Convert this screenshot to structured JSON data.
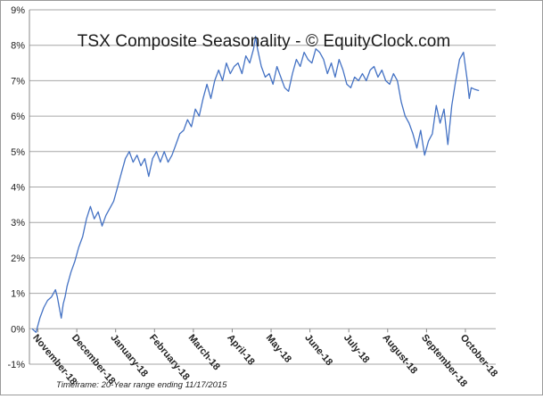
{
  "chart_data": {
    "type": "line",
    "title": "TSX Composite Seasonality - © EquityClock.com",
    "footnote": "Timeframe: 20-Year range ending 11/17/2015",
    "xlabel": "",
    "ylabel": "",
    "ylim": [
      -1,
      9
    ],
    "yticks": [
      "-1%",
      "0%",
      "1%",
      "2%",
      "3%",
      "4%",
      "5%",
      "6%",
      "7%",
      "8%",
      "9%"
    ],
    "xticks": [
      "November-18",
      "December-18",
      "January-18",
      "February-18",
      "March-18",
      "April-18",
      "May-18",
      "June-18",
      "July-18",
      "August-18",
      "September-18",
      "October-18"
    ],
    "grid": "horizontal",
    "legend": "none",
    "line_color": "#4472c4",
    "series": [
      {
        "points": [
          [
            0,
            0.0
          ],
          [
            0.1,
            -0.1
          ],
          [
            0.2,
            0.3
          ],
          [
            0.3,
            0.6
          ],
          [
            0.4,
            0.8
          ],
          [
            0.5,
            0.9
          ],
          [
            0.6,
            1.1
          ],
          [
            0.65,
            0.9
          ],
          [
            0.7,
            0.6
          ],
          [
            0.75,
            0.3
          ],
          [
            0.8,
            0.7
          ],
          [
            0.85,
            0.9
          ],
          [
            0.9,
            1.2
          ],
          [
            1.0,
            1.6
          ],
          [
            1.1,
            1.9
          ],
          [
            1.2,
            2.3
          ],
          [
            1.3,
            2.6
          ],
          [
            1.4,
            3.1
          ],
          [
            1.5,
            3.45
          ],
          [
            1.6,
            3.1
          ],
          [
            1.7,
            3.3
          ],
          [
            1.8,
            2.9
          ],
          [
            1.9,
            3.2
          ],
          [
            2.0,
            3.4
          ],
          [
            2.1,
            3.6
          ],
          [
            2.2,
            4.0
          ],
          [
            2.3,
            4.4
          ],
          [
            2.4,
            4.8
          ],
          [
            2.5,
            5.0
          ],
          [
            2.6,
            4.7
          ],
          [
            2.7,
            4.9
          ],
          [
            2.8,
            4.6
          ],
          [
            2.9,
            4.8
          ],
          [
            3.0,
            4.3
          ],
          [
            3.1,
            4.8
          ],
          [
            3.2,
            5.0
          ],
          [
            3.3,
            4.7
          ],
          [
            3.4,
            5.0
          ],
          [
            3.5,
            4.7
          ],
          [
            3.6,
            4.9
          ],
          [
            3.7,
            5.2
          ],
          [
            3.8,
            5.5
          ],
          [
            3.9,
            5.6
          ],
          [
            4.0,
            5.9
          ],
          [
            4.1,
            5.7
          ],
          [
            4.2,
            6.2
          ],
          [
            4.3,
            6.0
          ],
          [
            4.4,
            6.5
          ],
          [
            4.5,
            6.9
          ],
          [
            4.6,
            6.5
          ],
          [
            4.7,
            7.0
          ],
          [
            4.8,
            7.3
          ],
          [
            4.9,
            7.0
          ],
          [
            5.0,
            7.5
          ],
          [
            5.1,
            7.2
          ],
          [
            5.2,
            7.4
          ],
          [
            5.3,
            7.5
          ],
          [
            5.4,
            7.2
          ],
          [
            5.5,
            7.7
          ],
          [
            5.6,
            7.5
          ],
          [
            5.7,
            7.9
          ],
          [
            5.75,
            8.25
          ],
          [
            5.8,
            7.9
          ],
          [
            5.9,
            7.4
          ],
          [
            6.0,
            7.1
          ],
          [
            6.1,
            7.2
          ],
          [
            6.2,
            6.9
          ],
          [
            6.3,
            7.4
          ],
          [
            6.4,
            7.1
          ],
          [
            6.5,
            6.8
          ],
          [
            6.6,
            6.7
          ],
          [
            6.7,
            7.2
          ],
          [
            6.8,
            7.6
          ],
          [
            6.9,
            7.4
          ],
          [
            7.0,
            7.8
          ],
          [
            7.1,
            7.6
          ],
          [
            7.2,
            7.5
          ],
          [
            7.3,
            7.9
          ],
          [
            7.4,
            7.8
          ],
          [
            7.5,
            7.6
          ],
          [
            7.6,
            7.2
          ],
          [
            7.7,
            7.5
          ],
          [
            7.8,
            7.1
          ],
          [
            7.9,
            7.6
          ],
          [
            8.0,
            7.3
          ],
          [
            8.1,
            6.9
          ],
          [
            8.2,
            6.8
          ],
          [
            8.3,
            7.1
          ],
          [
            8.4,
            7.0
          ],
          [
            8.5,
            7.2
          ],
          [
            8.6,
            7.0
          ],
          [
            8.7,
            7.3
          ],
          [
            8.8,
            7.4
          ],
          [
            8.9,
            7.1
          ],
          [
            9.0,
            7.3
          ],
          [
            9.1,
            7.0
          ],
          [
            9.2,
            6.9
          ],
          [
            9.3,
            7.2
          ],
          [
            9.4,
            7.0
          ],
          [
            9.5,
            6.4
          ],
          [
            9.6,
            6.0
          ],
          [
            9.7,
            5.8
          ],
          [
            9.8,
            5.5
          ],
          [
            9.9,
            5.1
          ],
          [
            10.0,
            5.6
          ],
          [
            10.1,
            4.9
          ],
          [
            10.2,
            5.3
          ],
          [
            10.3,
            5.5
          ],
          [
            10.4,
            6.3
          ],
          [
            10.5,
            5.8
          ],
          [
            10.6,
            6.2
          ],
          [
            10.7,
            5.2
          ],
          [
            10.8,
            6.3
          ],
          [
            10.9,
            7.0
          ],
          [
            11.0,
            7.6
          ],
          [
            11.1,
            7.8
          ],
          [
            11.2,
            7.0
          ],
          [
            11.25,
            6.5
          ],
          [
            11.3,
            6.8
          ],
          [
            11.4,
            6.75
          ],
          [
            11.5,
            6.72
          ]
        ]
      }
    ]
  }
}
